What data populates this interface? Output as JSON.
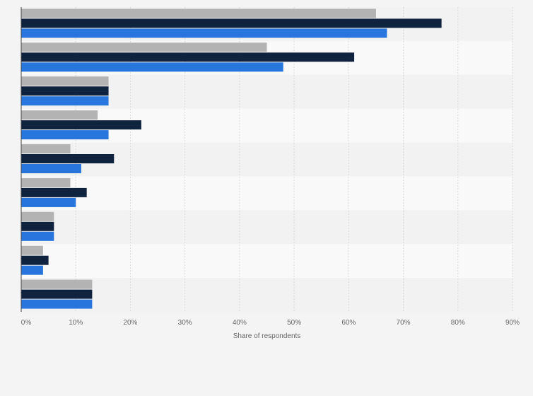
{
  "chart_data": {
    "type": "bar",
    "orientation": "horizontal",
    "categories": [
      "",
      "",
      "",
      "",
      "",
      "",
      "",
      "",
      ""
    ],
    "series": [
      {
        "values": [
          65,
          45,
          16,
          14,
          9,
          9,
          6,
          4,
          13
        ]
      },
      {
        "values": [
          77,
          61,
          16,
          22,
          17,
          12,
          6,
          5,
          13
        ]
      },
      {
        "values": [
          67,
          48,
          16,
          16,
          11,
          10,
          6,
          4,
          13
        ]
      }
    ],
    "title": "",
    "xlabel": "Share of respondents",
    "ylabel": "",
    "xlim": [
      0,
      90
    ],
    "x_ticks": [
      "0%",
      "10%",
      "20%",
      "30%",
      "40%",
      "50%",
      "60%",
      "70%",
      "80%",
      "90%"
    ],
    "grid": true,
    "legend": "none"
  },
  "colors": {
    "series": [
      "#b3b3b3",
      "#10233e",
      "#2876dd"
    ],
    "band_odd": "#f2f2f2",
    "band_even": "#f9f9f9",
    "grid": "#d9d9d9"
  }
}
